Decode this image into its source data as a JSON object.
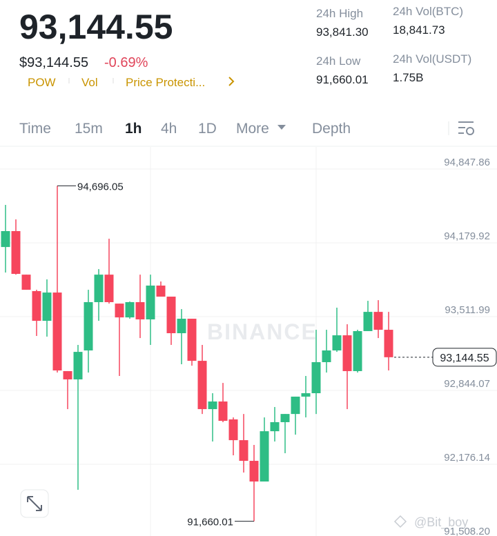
{
  "header": {
    "price": "93,144.55",
    "fiat_price": "$93,144.55",
    "change": "-0.69%",
    "tags": [
      "POW",
      "Vol",
      "Price Protecti..."
    ]
  },
  "stats": [
    {
      "label": "24h High",
      "value": "93,841.30"
    },
    {
      "label": "24h Vol(BTC)",
      "value": "18,841.73"
    },
    {
      "label": "24h Low",
      "value": "91,660.01"
    },
    {
      "label": "24h Vol(USDT)",
      "value": "1.75B"
    }
  ],
  "tabs": [
    "Time",
    "15m",
    "1h",
    "4h",
    "1D",
    "More",
    "Depth"
  ],
  "watermarks": [
    "BINANCE",
    "@Bit_boy"
  ],
  "chart_data": {
    "type": "candlestick",
    "ylim": [
      91526.8,
      95047.6
    ],
    "yticks": [
      {
        "value": 94847.86,
        "label": "94,847.86"
      },
      {
        "value": 94179.92,
        "label": "94,179.92"
      },
      {
        "value": 93511.99,
        "label": "93,511.99"
      },
      {
        "value": 92844.07,
        "label": "92,844.07"
      },
      {
        "value": 92176.14,
        "label": "92,176.14"
      },
      {
        "value": 91508.2,
        "label": "91,508.20"
      }
    ],
    "up_color": "#2ebd85",
    "down_color": "#f6465d",
    "grid": true,
    "open": [
      94142,
      94286,
      93892,
      93743,
      93474,
      93730,
      93019,
      92944,
      93206,
      93643,
      93892,
      93630,
      93505,
      93643,
      93487,
      93793,
      93693,
      93362,
      93493,
      93112,
      92675,
      92744,
      92582,
      92394,
      92207,
      92020,
      92475,
      92557,
      92631,
      92788,
      92819,
      93100,
      93206,
      93343,
      93019,
      93381,
      93555,
      93393
    ],
    "high": [
      94523,
      94392,
      93892,
      93755,
      93849,
      94696.05,
      93019,
      93256,
      93755,
      93942,
      94217,
      93630,
      93649,
      93892,
      93892,
      93830,
      93693,
      93580,
      93493,
      93256,
      92819,
      92912,
      92600,
      92631,
      92351,
      92600,
      92694,
      92631,
      92788,
      92975,
      93393,
      93393,
      93593,
      93443,
      93393,
      93655,
      93661,
      93555
    ],
    "low": [
      93911,
      93892,
      93755,
      93337,
      93331,
      93006,
      92675,
      91945,
      93006,
      93474,
      93630,
      92975,
      93493,
      93318,
      93256,
      93693,
      93256,
      93081,
      93068,
      92631,
      92382,
      92557,
      92257,
      92101,
      91660.01,
      92020,
      92382,
      92276,
      92444,
      92600,
      92631,
      93006,
      93193,
      92675,
      93006,
      93381,
      93318,
      93025
    ],
    "close": [
      94286,
      93899,
      93755,
      93474,
      93730,
      93025,
      92944,
      93193,
      93643,
      93892,
      93643,
      93505,
      93643,
      93487,
      93793,
      93693,
      93362,
      93493,
      93112,
      92675,
      92744,
      92569,
      92394,
      92207,
      92020,
      92475,
      92557,
      92631,
      92788,
      92819,
      93100,
      93206,
      93343,
      93019,
      93381,
      93555,
      93393,
      93144.55
    ],
    "annotations": {
      "high_label": "94,696.05",
      "low_label": "91,660.01",
      "last_price_label": "93,144.55"
    }
  }
}
